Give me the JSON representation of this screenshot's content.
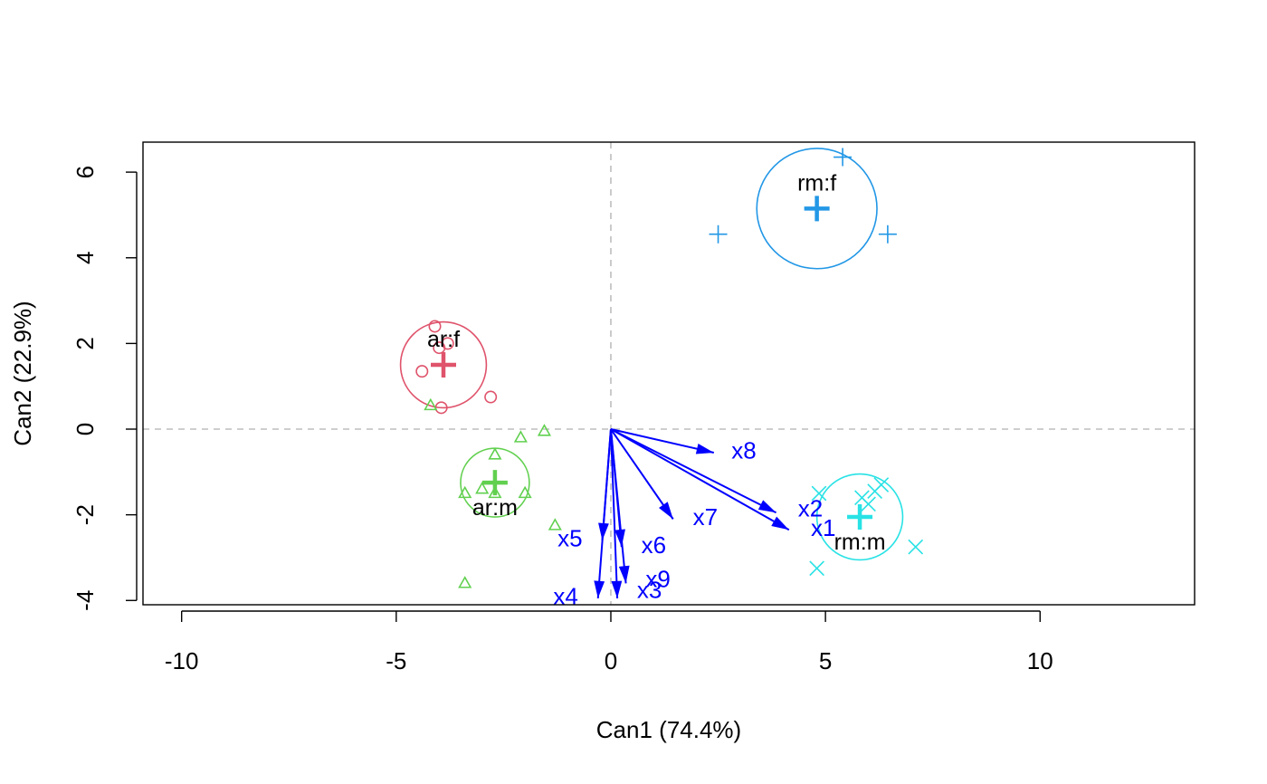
{
  "chart_data": {
    "type": "scatter",
    "title": "",
    "xlabel": "Can1 (74.4%)",
    "ylabel": "Can2 (22.9%)",
    "xlim": [
      -10.9,
      13.6
    ],
    "ylim": [
      -4.1,
      6.7
    ],
    "xticks": [
      -10,
      -5,
      0,
      5,
      10
    ],
    "xtick_labels": [
      "-10",
      "-5",
      "0",
      "5",
      "10"
    ],
    "yticks": [
      -4,
      -2,
      0,
      2,
      4,
      6
    ],
    "ytick_labels": [
      "-4",
      "-2",
      "0",
      "2",
      "4",
      "6"
    ],
    "reference_lines": {
      "x": 0,
      "y": 0,
      "style": "dashed",
      "color": "#bebebe"
    },
    "grid": false,
    "groups": [
      {
        "label": "ar:f",
        "color": "#df536b",
        "marker": "circle",
        "centroid": [
          -3.9,
          1.5
        ],
        "circle_radius": 1.0,
        "points": [
          [
            -4.1,
            2.4
          ],
          [
            -3.8,
            2.0
          ],
          [
            -4.0,
            1.9
          ],
          [
            -4.4,
            1.35
          ],
          [
            -2.8,
            0.75
          ],
          [
            -3.95,
            0.5
          ]
        ]
      },
      {
        "label": "ar:m",
        "color": "#61d04f",
        "marker": "triangle",
        "centroid": [
          -2.7,
          -1.25
        ],
        "circle_radius": 0.8,
        "points": [
          [
            -4.2,
            0.55
          ],
          [
            -1.55,
            -0.05
          ],
          [
            -2.1,
            -0.2
          ],
          [
            -2.7,
            -0.6
          ],
          [
            -3.4,
            -1.5
          ],
          [
            -3.0,
            -1.4
          ],
          [
            -2.7,
            -1.5
          ],
          [
            -2.0,
            -1.5
          ],
          [
            -1.3,
            -2.25
          ],
          [
            -3.4,
            -3.6
          ]
        ]
      },
      {
        "label": "rm:f",
        "color": "#2297e6",
        "marker": "plus",
        "centroid": [
          4.8,
          5.15
        ],
        "circle_radius": 1.4,
        "points": [
          [
            5.4,
            6.35
          ],
          [
            2.5,
            4.55
          ],
          [
            6.45,
            4.55
          ]
        ]
      },
      {
        "label": "rm:m",
        "color": "#28e2e5",
        "marker": "cross",
        "centroid": [
          5.8,
          -2.05
        ],
        "circle_radius": 1.0,
        "points": [
          [
            4.85,
            -1.5
          ],
          [
            5.85,
            -1.6
          ],
          [
            6.0,
            -1.75
          ],
          [
            6.15,
            -1.45
          ],
          [
            6.3,
            -1.3
          ],
          [
            7.1,
            -2.75
          ],
          [
            4.8,
            -3.25
          ]
        ]
      }
    ],
    "vectors": {
      "color": "#0000ff",
      "origin": [
        0,
        0
      ],
      "items": [
        {
          "label": "x1",
          "end": [
            4.15,
            -2.35
          ],
          "label_pos": [
            4.95,
            -2.3
          ]
        },
        {
          "label": "x2",
          "end": [
            3.85,
            -1.95
          ],
          "label_pos": [
            4.65,
            -1.85
          ]
        },
        {
          "label": "x3",
          "end": [
            0.15,
            -3.95
          ],
          "label_pos": [
            0.9,
            -3.75
          ]
        },
        {
          "label": "x4",
          "end": [
            -0.3,
            -3.95
          ],
          "label_pos": [
            -1.05,
            -3.9
          ]
        },
        {
          "label": "x5",
          "end": [
            -0.2,
            -2.6
          ],
          "label_pos": [
            -0.95,
            -2.55
          ]
        },
        {
          "label": "x6",
          "end": [
            0.25,
            -2.75
          ],
          "label_pos": [
            1.0,
            -2.7
          ]
        },
        {
          "label": "x7",
          "end": [
            1.45,
            -2.1
          ],
          "label_pos": [
            2.2,
            -2.05
          ]
        },
        {
          "label": "x8",
          "end": [
            2.4,
            -0.55
          ],
          "label_pos": [
            3.1,
            -0.5
          ]
        },
        {
          "label": "x9",
          "end": [
            0.35,
            -3.6
          ],
          "label_pos": [
            1.1,
            -3.5
          ]
        }
      ]
    }
  }
}
